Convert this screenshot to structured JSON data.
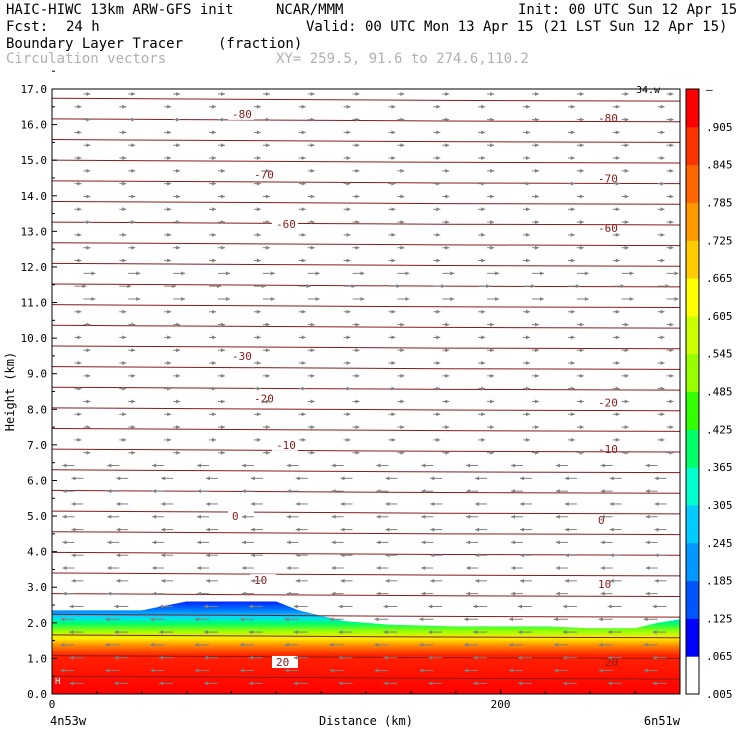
{
  "header": {
    "model": "HAIC-HIWC 13km ARW-GFS init",
    "org": "NCAR/MMM",
    "init": "Init: 00 UTC Sun 12 Apr 15",
    "fcst_label": "Fcst:",
    "fcst_value": "24 h",
    "valid": "Valid: 00 UTC Mon 13 Apr 15 (21 LST Sun 12 Apr 15)",
    "field": "Boundary Layer Tracer",
    "field_units": "(fraction)",
    "vectors": "Circulation vectors",
    "xy": "XY= 259.5, 91.6 to 274.6,110.2"
  },
  "colors": {
    "contour": "#8b1a1a",
    "vector": "#808080",
    "colorbar": [
      "#ffffff",
      "#0000ff",
      "#0055ff",
      "#0099ff",
      "#00ccff",
      "#00ffcc",
      "#00ff66",
      "#33ff00",
      "#99ff00",
      "#ccff00",
      "#ffff00",
      "#ffcc00",
      "#ff9900",
      "#ff6600",
      "#ff3300",
      "#ff0000"
    ]
  },
  "chart_data": {
    "type": "heatmap",
    "title": "Boundary Layer Tracer",
    "xlabel": "Distance (km)",
    "ylabel": "Height (km)",
    "xlim": [
      0,
      280
    ],
    "ylim": [
      0,
      17
    ],
    "x_ticks": [
      "0",
      "200"
    ],
    "x_tick_values": [
      0,
      200
    ],
    "x_start_label": "4n53w",
    "x_end_label": "6n51w",
    "y_ticks": [
      "0.0",
      "1.0",
      "2.0",
      "3.0",
      "4.0",
      "5.0",
      "6.0",
      "7.0",
      "8.0",
      "9.0",
      "10.0",
      "11.0",
      "12.0",
      "13.0",
      "14.0",
      "15.0",
      "16.0",
      "17.0"
    ],
    "colorbar_labels": [
      ".005",
      ".065",
      ".125",
      ".185",
      ".245",
      ".305",
      ".365",
      ".425",
      ".485",
      ".545",
      ".605",
      ".665",
      ".725",
      ".785",
      ".845",
      ".905",
      "–"
    ],
    "temperature_contours_C": [
      {
        "label": "-80",
        "height_km": 16.3
      },
      {
        "label": "-70",
        "height_km": 14.6
      },
      {
        "label": "-60",
        "height_km": 13.2
      },
      {
        "label": "-30",
        "height_km": 9.5
      },
      {
        "label": "-20",
        "height_km": 8.3
      },
      {
        "label": "-10",
        "height_km": 7.0
      },
      {
        "label": "0",
        "height_km": 5.0
      },
      {
        "label": "10",
        "height_km": 3.2
      },
      {
        "label": "20",
        "height_km": 0.9
      }
    ],
    "tracer_top_km": [
      2.35,
      2.35,
      2.45,
      2.6,
      2.6,
      2.35,
      2.05,
      1.95,
      1.9,
      1.9,
      1.85,
      1.85,
      2.0,
      2.1
    ],
    "tracer_top_x_km": [
      0,
      40,
      48,
      60,
      100,
      110,
      130,
      150,
      180,
      220,
      240,
      260,
      270,
      280
    ],
    "corner_label": "34.w",
    "bottom_label": "H"
  }
}
